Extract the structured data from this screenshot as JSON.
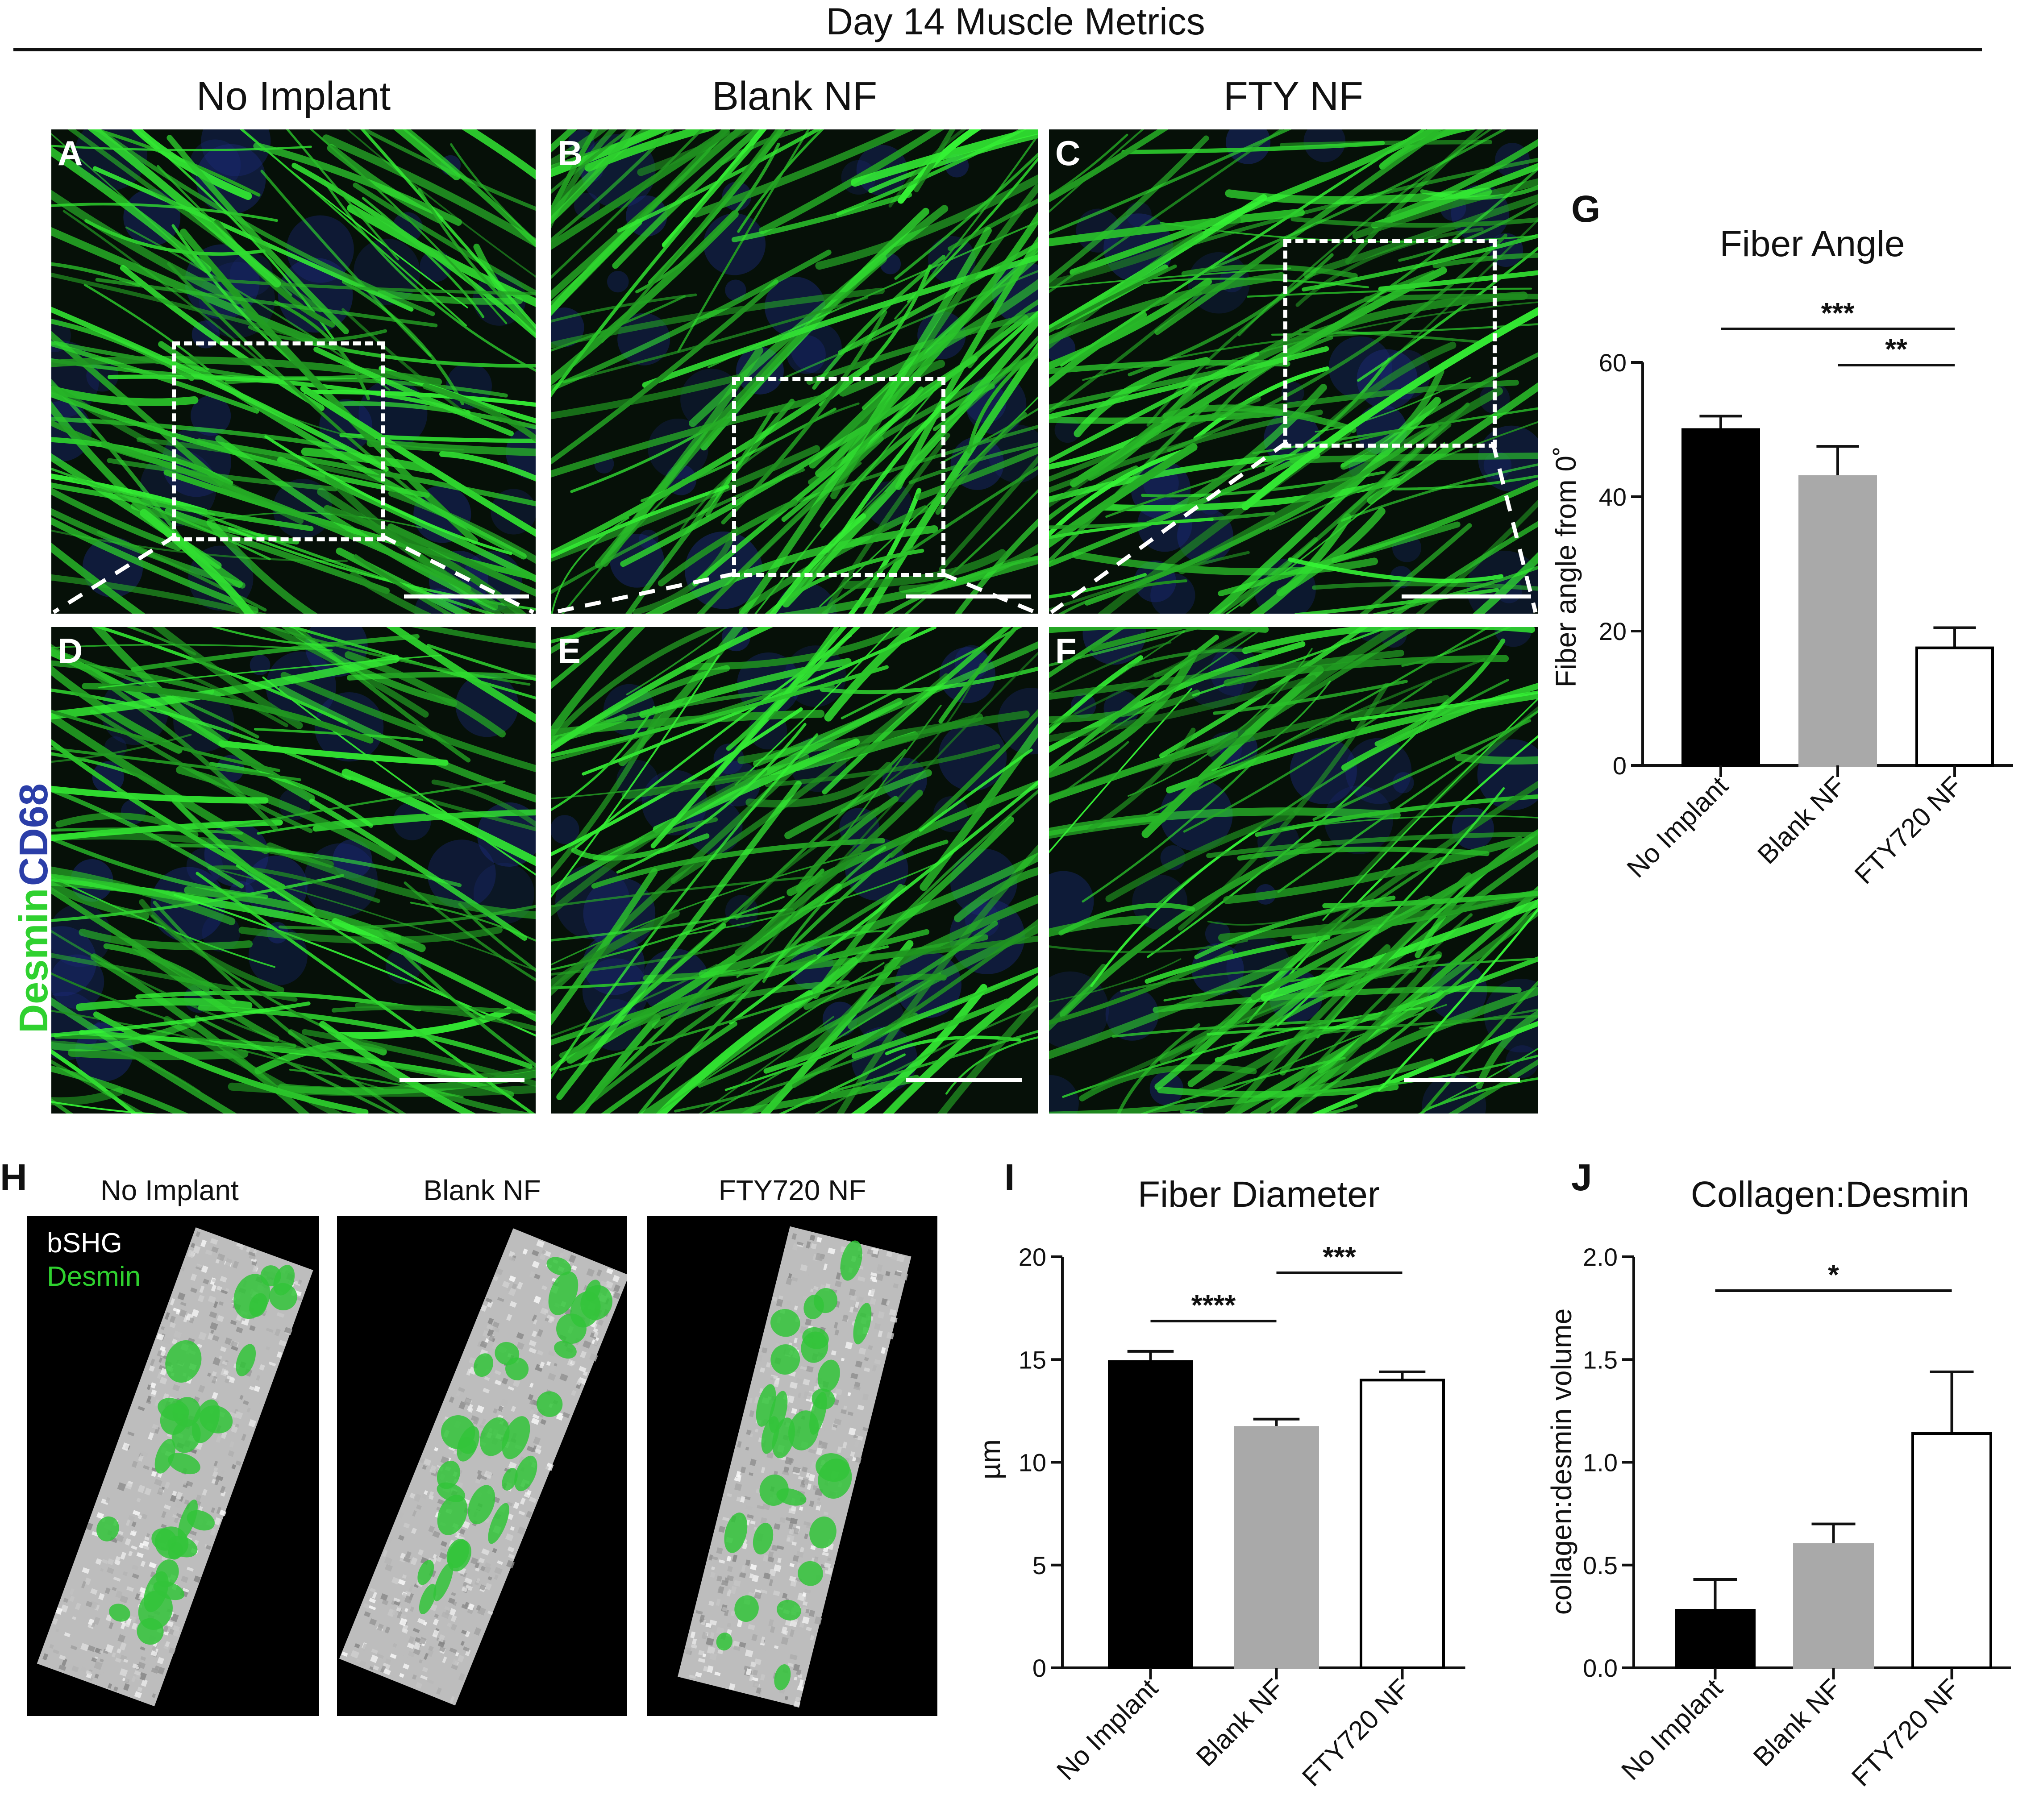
{
  "figure": {
    "title": "Day 14 Muscle Metrics",
    "columns": [
      "No Implant",
      "Blank NF",
      "FTY NF"
    ],
    "panel_letters": [
      "A",
      "B",
      "C",
      "D",
      "E",
      "F"
    ],
    "stain": {
      "green": "Desmin",
      "blue": "CD68"
    },
    "panel_h": {
      "letter": "H",
      "labels": [
        "No Implant",
        "Blank NF",
        "FTY720 NF"
      ],
      "legend_white": "bSHG",
      "legend_green": "Desmin"
    },
    "colors": {
      "green": "#2fd12f",
      "blue": "#2b3ea8",
      "bar_gray": "#a9a9a9",
      "bar_black": "#000000"
    }
  },
  "chart_data": [
    {
      "letter": "G",
      "type": "bar",
      "title": "Fiber Angle",
      "ylabel": "Fiber angle from 0˚",
      "categories": [
        "No Implant",
        "Blank NF",
        "FTY720 NF"
      ],
      "values": [
        50,
        43,
        17.5
      ],
      "errors": [
        2,
        4.5,
        3
      ],
      "ylim": [
        0,
        60
      ],
      "yticks": [
        "0",
        "20",
        "40",
        "60"
      ],
      "significance": [
        {
          "from": 0,
          "to": 2,
          "label": "***"
        },
        {
          "from": 1,
          "to": 2,
          "label": "**"
        }
      ]
    },
    {
      "letter": "I",
      "type": "bar",
      "title": "Fiber Diameter",
      "ylabel": "µm",
      "categories": [
        "No Implant",
        "Blank NF",
        "FTY720 NF"
      ],
      "values": [
        14.9,
        11.7,
        14.0
      ],
      "errors": [
        0.5,
        0.4,
        0.4
      ],
      "ylim": [
        0,
        20
      ],
      "yticks": [
        "0",
        "5",
        "10",
        "15",
        "20"
      ],
      "significance": [
        {
          "from": 0,
          "to": 1,
          "label": "****"
        },
        {
          "from": 1,
          "to": 2,
          "label": "***"
        }
      ]
    },
    {
      "letter": "J",
      "type": "bar",
      "title": "Collagen:Desmin",
      "ylabel": "collagen:desmin volume",
      "categories": [
        "No Implant",
        "Blank NF",
        "FTY720 NF"
      ],
      "values": [
        0.28,
        0.6,
        1.14
      ],
      "errors": [
        0.15,
        0.1,
        0.3
      ],
      "ylim": [
        0,
        2.0
      ],
      "yticks": [
        "0.0",
        "0.5",
        "1.0",
        "1.5",
        "2.0"
      ],
      "significance": [
        {
          "from": 0,
          "to": 2,
          "label": "*"
        }
      ]
    }
  ]
}
